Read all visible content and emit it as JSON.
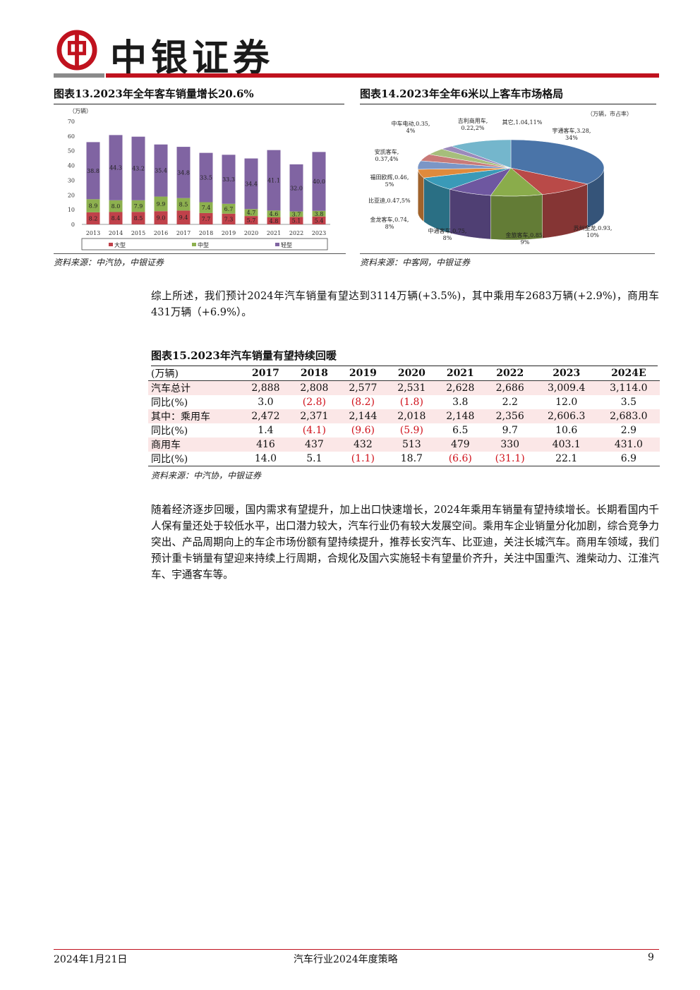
{
  "header": {
    "brand": "中银证券"
  },
  "fig13": {
    "title": "图表13.2023年全年客车销量增长20.6%",
    "unit": "（万辆）",
    "source": "资料来源：中汽协，中银证券"
  },
  "fig14": {
    "title": "图表14.2023年全年6米以上客车市场格局",
    "unit": "（万辆，市占率）",
    "source": "资料来源：中客网，中银证券"
  },
  "chart_data": [
    {
      "type": "bar",
      "stacked": true,
      "ylabel": "（万辆）",
      "ylim": [
        0,
        70
      ],
      "yticks": [
        0,
        10,
        20,
        30,
        40,
        50,
        60,
        70
      ],
      "categories": [
        "2013",
        "2014",
        "2015",
        "2016",
        "2017",
        "2018",
        "2019",
        "2020",
        "2021",
        "2022",
        "2023"
      ],
      "series": [
        {
          "name": "大型",
          "color": "#c0414a",
          "values": [
            8.2,
            8.4,
            8.5,
            9.0,
            9.4,
            7.7,
            7.3,
            5.7,
            4.8,
            5.1,
            5.4
          ]
        },
        {
          "name": "中型",
          "color": "#8db04f",
          "values": [
            8.9,
            8.0,
            7.9,
            9.9,
            8.5,
            7.4,
            6.7,
            4.7,
            4.6,
            3.7,
            3.8
          ]
        },
        {
          "name": "轻型",
          "color": "#8064a2",
          "values": [
            38.8,
            44.3,
            43.2,
            35.4,
            34.8,
            33.5,
            33.3,
            34.4,
            41.1,
            32.0,
            40.0
          ]
        }
      ],
      "legend": "bottom"
    },
    {
      "type": "pie",
      "slices": [
        {
          "label": "宇通客车,3.28,34%",
          "value": 3.28,
          "share": 34,
          "color": "#4a74a8"
        },
        {
          "label": "苏州金龙,0.93,10%",
          "value": 0.93,
          "share": 10,
          "color": "#b94a48"
        },
        {
          "label": "金旅客车,0.85,9%",
          "value": 0.85,
          "share": 9,
          "color": "#8aac4b"
        },
        {
          "label": "中通客车,0.75,8%",
          "value": 0.75,
          "share": 8,
          "color": "#6e57a0"
        },
        {
          "label": "金龙客车,0.74,8%",
          "value": 0.74,
          "share": 8,
          "color": "#3a9ab8"
        },
        {
          "label": "比亚迪,0.47,5%",
          "value": 0.47,
          "share": 5,
          "color": "#e08a3c"
        },
        {
          "label": "福田欧辉,0.46,5%",
          "value": 0.46,
          "share": 5,
          "color": "#7b96c6"
        },
        {
          "label": "安凯客车,0.37,4%",
          "value": 0.37,
          "share": 4,
          "color": "#c97a78"
        },
        {
          "label": "中车电动,0.35,4%",
          "value": 0.35,
          "share": 4,
          "color": "#a6be7b"
        },
        {
          "label": "吉利商用车,0.22,2%",
          "value": 0.22,
          "share": 2,
          "color": "#9b89bb"
        },
        {
          "label": "其它,1.04,11%",
          "value": 1.04,
          "share": 11,
          "color": "#74b6cc"
        }
      ],
      "pie_label_lines": {
        "yutong": [
          "宇通客车,3.28,",
          "34%"
        ],
        "suzhou": [
          "苏州金龙,0.93,",
          "10%"
        ],
        "jinlv": [
          "金旅客车,0.85,",
          "9%"
        ],
        "zhongtong": [
          "中通客车,0.75,",
          "8%"
        ],
        "jinlong": [
          "金龙客车,0.74,",
          "8%"
        ],
        "byd": [
          "比亚迪,0.47,5%"
        ],
        "futian": [
          "福田欧辉,0.46,",
          "5%"
        ],
        "ankai": [
          "安凯客车,",
          "0.37,4%"
        ],
        "zhongche": [
          "中车电动,0.35,",
          "4%"
        ],
        "jili": [
          "吉利商用车,",
          "0.22,2%"
        ],
        "other": [
          "其它,1.04,11%"
        ]
      }
    },
    {
      "type": "table",
      "title": "图表15.2023年汽车销量有望持续回暖",
      "columns": [
        "(万辆)",
        "2017",
        "2018",
        "2019",
        "2020",
        "2021",
        "2022",
        "2023",
        "2024E"
      ],
      "rows": [
        {
          "cells": [
            "汽车总计",
            "2,888",
            "2,808",
            "2,577",
            "2,531",
            "2,628",
            "2,686",
            "3,009.4",
            "3,114.0"
          ],
          "neg": []
        },
        {
          "cells": [
            "同比(%)",
            "3.0",
            "(2.8)",
            "(8.2)",
            "(1.8)",
            "3.8",
            "2.2",
            "12.0",
            "3.5"
          ],
          "neg": [
            2,
            3,
            4
          ]
        },
        {
          "cells": [
            "其中：乘用车",
            "2,472",
            "2,371",
            "2,144",
            "2,018",
            "2,148",
            "2,356",
            "2,606.3",
            "2,683.0"
          ],
          "neg": []
        },
        {
          "cells": [
            "同比(%)",
            "1.4",
            "(4.1)",
            "(9.6)",
            "(5.9)",
            "6.5",
            "9.7",
            "10.6",
            "2.9"
          ],
          "neg": [
            2,
            3,
            4
          ]
        },
        {
          "cells": [
            "商用车",
            "416",
            "437",
            "432",
            "513",
            "479",
            "330",
            "403.1",
            "431.0"
          ],
          "neg": []
        },
        {
          "cells": [
            "同比(%)",
            "14.0",
            "5.1",
            "(1.1)",
            "18.7",
            "(6.6)",
            "(31.1)",
            "22.1",
            "6.9"
          ],
          "neg": [
            3,
            5,
            6
          ]
        }
      ],
      "source": "资料来源：中汽协，中银证券"
    }
  ],
  "body": {
    "para1": "综上所述，我们预计2024年汽车销量有望达到3114万辆(+3.5%)，其中乘用车2683万辆(+2.9%)，商用车431万辆（+6.9%）。",
    "para2": "随着经济逐步回暖，国内需求有望提升，加上出口快速增长，2024年乘用车销量有望持续增长。长期看国内千人保有量还处于较低水平，出口潜力较大，汽车行业仍有较大发展空间。乘用车企业销量分化加剧，综合竞争力突出、产品周期向上的车企市场份额有望持续提升，推荐长安汽车、比亚迪，关注长城汽车。商用车领域，我们预计重卡销量有望迎来持续上行周期，合规化及国六实施轻卡有望量价齐升，关注中国重汽、潍柴动力、江淮汽车、宇通客车等。"
  },
  "footer": {
    "date": "2024年1月21日",
    "doc_title": "汽车行业2024年度策略",
    "page": "9"
  }
}
